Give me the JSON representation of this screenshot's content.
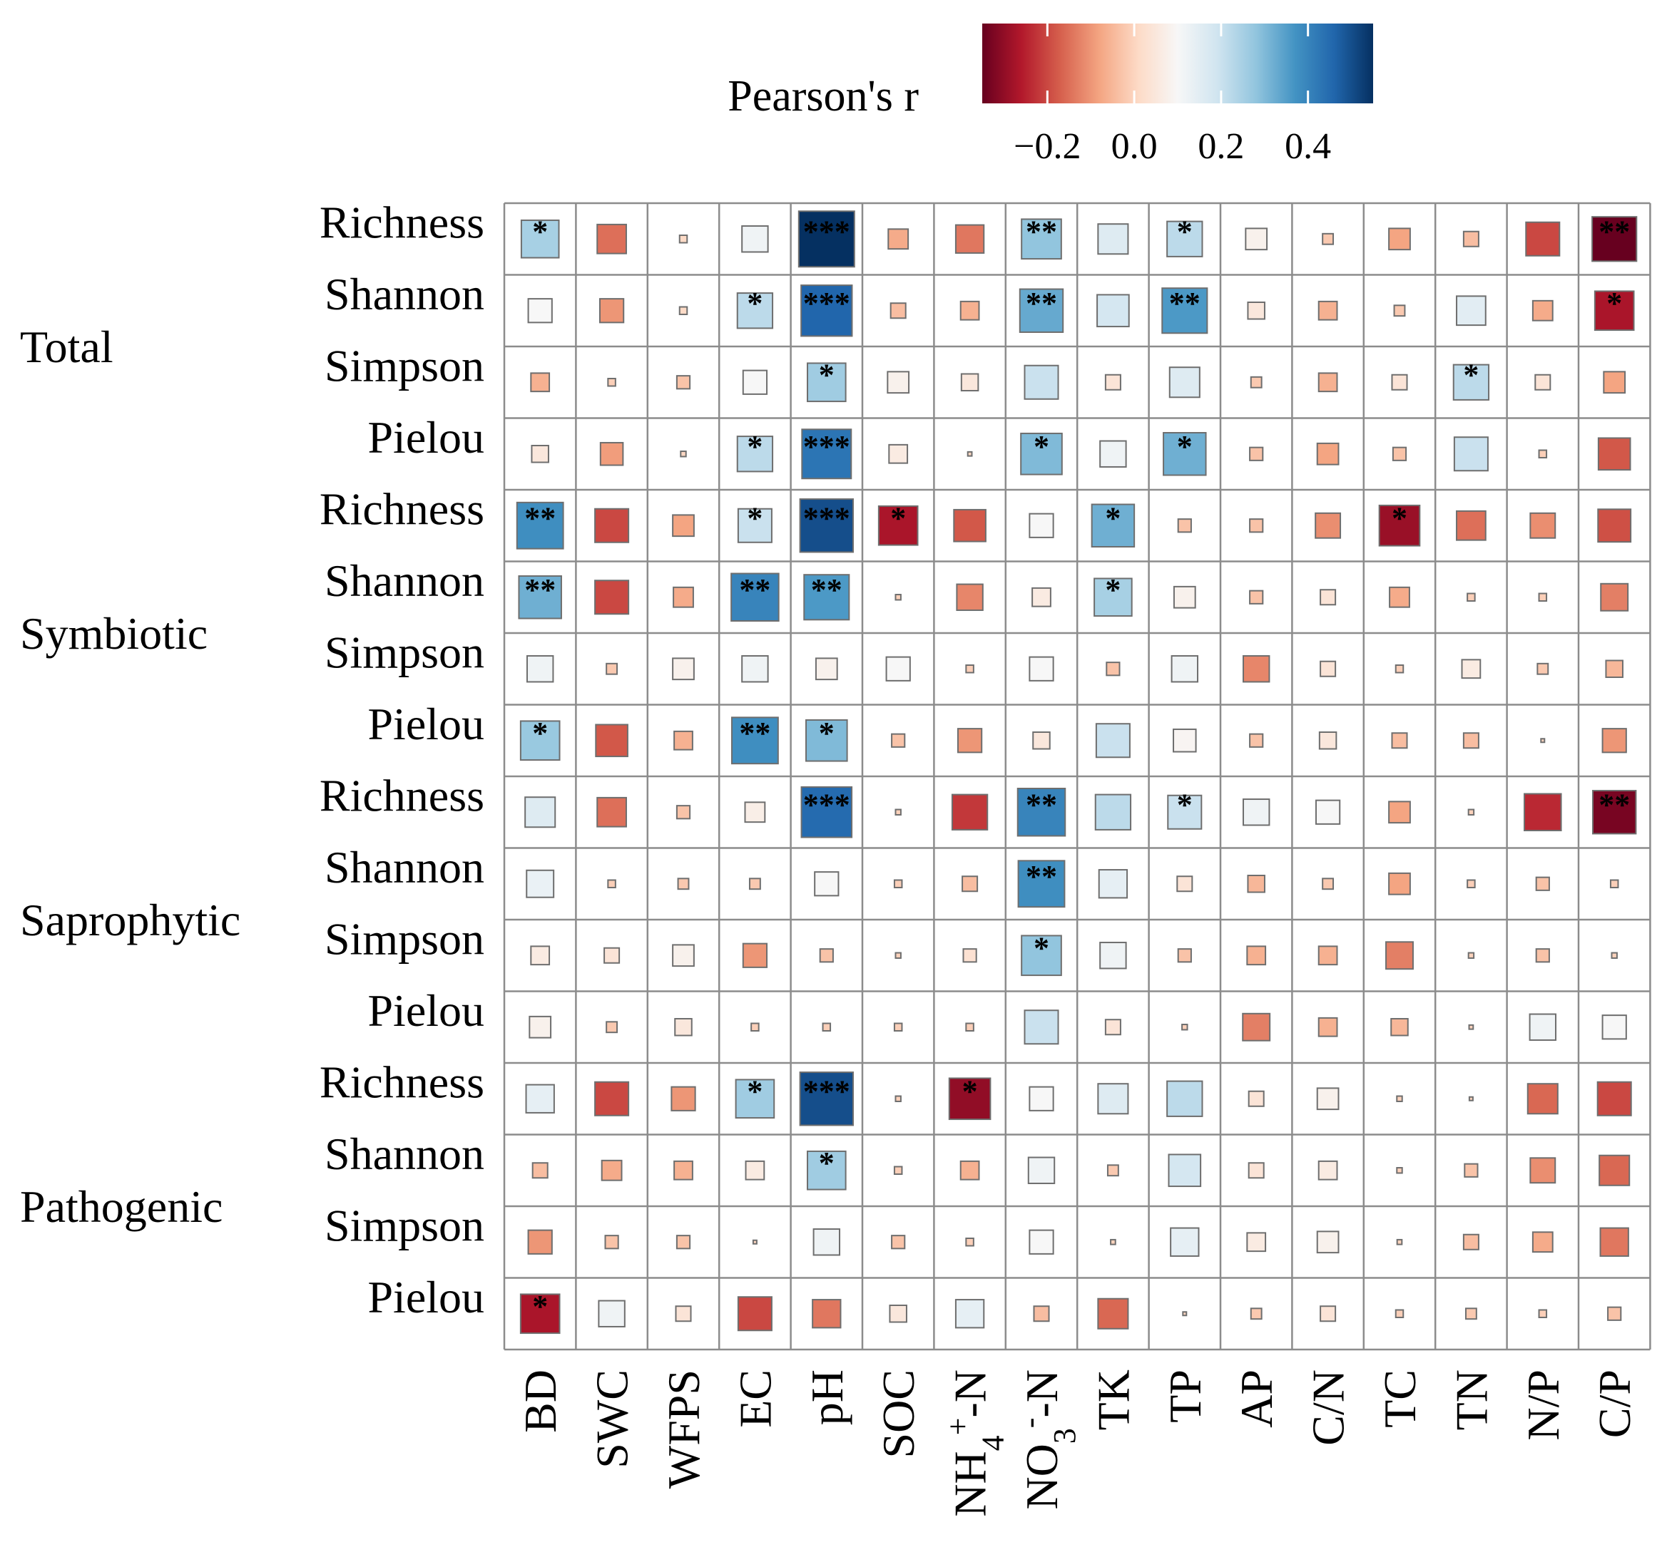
{
  "chart_data": {
    "type": "heatmap",
    "legend": {
      "title": "Pearson's r",
      "ticks": [
        -0.2,
        0.0,
        0.2,
        0.4
      ],
      "tick_labels": [
        "−0.2",
        "0.0",
        "0.2",
        "0.4"
      ],
      "range": [
        -0.35,
        0.55
      ],
      "colors": [
        "#67001f",
        "#b2182b",
        "#d6604d",
        "#f4a582",
        "#fddbc7",
        "#f7f7f7",
        "#d1e5f0",
        "#92c5de",
        "#4393c3",
        "#2166ac",
        "#053061"
      ]
    },
    "groups": [
      "Total",
      "Symbiotic",
      "Saprophytic",
      "Pathogenic"
    ],
    "rows": [
      {
        "group": "Total",
        "label": "Richness",
        "r": [
          0.25,
          -0.15,
          0.01,
          0.12,
          0.55,
          -0.07,
          -0.14,
          0.28,
          0.16,
          0.22,
          0.08,
          -0.02,
          -0.08,
          -0.04,
          -0.2,
          -0.35
        ],
        "sig": [
          "*",
          "",
          "",
          "",
          "***",
          "",
          "",
          "**",
          "",
          "*",
          "",
          "",
          "",
          "",
          "",
          "**"
        ]
      },
      {
        "group": "Total",
        "label": "Shannon",
        "r": [
          0.1,
          -0.1,
          0.01,
          0.22,
          0.46,
          -0.04,
          -0.06,
          0.33,
          0.18,
          0.36,
          0.05,
          -0.06,
          -0.02,
          0.15,
          -0.07,
          -0.27
        ],
        "sig": [
          "",
          "",
          "",
          "*",
          "***",
          "",
          "",
          "**",
          "",
          "**",
          "",
          "",
          "",
          "",
          "",
          "*"
        ]
      },
      {
        "group": "Total",
        "label": "Simpson",
        "r": [
          -0.06,
          -0.01,
          -0.03,
          0.1,
          0.26,
          0.08,
          0.05,
          0.2,
          0.04,
          0.16,
          -0.02,
          -0.06,
          0.04,
          0.22,
          0.04,
          -0.08
        ],
        "sig": [
          "",
          "",
          "",
          "",
          "*",
          "",
          "",
          "",
          "",
          "",
          "",
          "",
          "",
          "*",
          "",
          ""
        ]
      },
      {
        "group": "Total",
        "label": "Pielou",
        "r": [
          0.05,
          -0.09,
          0.005,
          0.22,
          0.43,
          0.06,
          0.003,
          0.3,
          0.12,
          0.32,
          -0.03,
          -0.08,
          -0.03,
          0.2,
          -0.01,
          -0.18
        ],
        "sig": [
          "",
          "",
          "",
          "*",
          "***",
          "",
          "",
          "*",
          "",
          "*",
          "",
          "",
          "",
          "",
          "",
          ""
        ]
      },
      {
        "group": "Symbiotic",
        "label": "Richness",
        "r": [
          0.38,
          -0.2,
          -0.08,
          0.2,
          0.5,
          -0.27,
          -0.18,
          0.1,
          0.32,
          -0.03,
          -0.03,
          -0.11,
          -0.29,
          -0.15,
          -0.11,
          -0.19
        ],
        "sig": [
          "**",
          "",
          "",
          "*",
          "***",
          "*",
          "",
          "",
          "*",
          "",
          "",
          "",
          "*",
          "",
          "",
          ""
        ]
      },
      {
        "group": "Symbiotic",
        "label": "Shannon",
        "r": [
          0.32,
          -0.2,
          -0.07,
          0.4,
          0.36,
          -0.005,
          -0.12,
          0.06,
          0.25,
          0.08,
          -0.03,
          0.04,
          -0.07,
          -0.01,
          -0.01,
          -0.13
        ],
        "sig": [
          "**",
          "",
          "",
          "**",
          "**",
          "",
          "",
          "",
          "*",
          "",
          "",
          "",
          "",
          "",
          "",
          ""
        ]
      },
      {
        "group": "Symbiotic",
        "label": "Simpson",
        "r": [
          0.12,
          -0.02,
          0.08,
          0.12,
          0.08,
          0.1,
          -0.01,
          0.1,
          -0.03,
          0.12,
          -0.12,
          0.04,
          -0.01,
          0.06,
          -0.02,
          -0.05
        ],
        "sig": [
          "",
          "",
          "",
          "",
          "",
          "",
          "",
          "",
          "",
          "",
          "",
          "",
          "",
          "",
          "",
          ""
        ]
      },
      {
        "group": "Symbiotic",
        "label": "Pielou",
        "r": [
          0.27,
          -0.18,
          -0.06,
          0.38,
          0.3,
          -0.03,
          -0.1,
          0.05,
          0.2,
          0.09,
          -0.03,
          0.05,
          -0.04,
          -0.04,
          -0.002,
          -0.1
        ],
        "sig": [
          "*",
          "",
          "",
          "**",
          "*",
          "",
          "",
          "",
          "",
          "",
          "",
          "",
          "",
          "",
          "",
          ""
        ]
      },
      {
        "group": "Saprophytic",
        "label": "Richness",
        "r": [
          0.16,
          -0.15,
          -0.03,
          0.07,
          0.45,
          -0.005,
          -0.22,
          0.4,
          0.22,
          0.2,
          0.12,
          0.1,
          -0.08,
          -0.005,
          -0.24,
          -0.33
        ],
        "sig": [
          "",
          "",
          "",
          "",
          "***",
          "",
          "",
          "**",
          "",
          "*",
          "",
          "",
          "",
          "",
          "",
          "**"
        ]
      },
      {
        "group": "Saprophytic",
        "label": "Shannon",
        "r": [
          0.13,
          -0.01,
          -0.02,
          -0.02,
          0.1,
          -0.01,
          -0.04,
          0.38,
          0.14,
          0.04,
          -0.05,
          -0.02,
          -0.08,
          -0.01,
          -0.03,
          -0.01
        ],
        "sig": [
          "",
          "",
          "",
          "",
          "",
          "",
          "",
          "**",
          "",
          "",
          "",
          "",
          "",
          "",
          "",
          ""
        ]
      },
      {
        "group": "Saprophytic",
        "label": "Simpson",
        "r": [
          0.06,
          0.04,
          0.08,
          -0.1,
          -0.03,
          -0.005,
          0.03,
          0.28,
          0.12,
          -0.03,
          -0.06,
          -0.06,
          -0.13,
          -0.005,
          -0.03,
          -0.005
        ],
        "sig": [
          "",
          "",
          "",
          "",
          "",
          "",
          "",
          "*",
          "",
          "",
          "",
          "",
          "",
          "",
          "",
          ""
        ]
      },
      {
        "group": "Saprophytic",
        "label": "Pielou",
        "r": [
          0.08,
          -0.02,
          0.05,
          -0.01,
          -0.01,
          -0.01,
          -0.01,
          0.2,
          0.04,
          -0.005,
          -0.13,
          -0.06,
          -0.05,
          -0.003,
          0.12,
          0.1
        ],
        "sig": [
          "",
          "",
          "",
          "",
          "",
          "",
          "",
          "",
          "",
          "",
          "",
          "",
          "",
          "",
          "",
          ""
        ]
      },
      {
        "group": "Pathogenic",
        "label": "Richness",
        "r": [
          0.14,
          -0.2,
          -0.1,
          0.26,
          0.5,
          -0.005,
          -0.3,
          0.1,
          0.16,
          0.22,
          0.04,
          0.08,
          -0.005,
          -0.002,
          -0.16,
          -0.2
        ],
        "sig": [
          "",
          "",
          "",
          "*",
          "***",
          "",
          "*",
          "",
          "",
          "",
          "",
          "",
          "",
          "",
          "",
          ""
        ]
      },
      {
        "group": "Pathogenic",
        "label": "Shannon",
        "r": [
          -0.04,
          -0.07,
          -0.06,
          0.06,
          0.26,
          -0.01,
          -0.06,
          0.12,
          -0.02,
          0.18,
          0.04,
          0.06,
          -0.005,
          -0.03,
          -0.11,
          -0.16
        ],
        "sig": [
          "",
          "",
          "",
          "",
          "*",
          "",
          "",
          "",
          "",
          "",
          "",
          "",
          "",
          "",
          "",
          ""
        ]
      },
      {
        "group": "Pathogenic",
        "label": "Simpson",
        "r": [
          -0.1,
          -0.03,
          -0.03,
          -0.002,
          0.12,
          -0.03,
          -0.01,
          0.1,
          -0.004,
          0.14,
          0.06,
          0.08,
          -0.004,
          -0.04,
          -0.07,
          -0.14
        ],
        "sig": [
          "",
          "",
          "",
          "",
          "",
          "",
          "",
          "",
          "",
          "",
          "",
          "",
          "",
          "",
          "",
          ""
        ]
      },
      {
        "group": "Pathogenic",
        "label": "Pielou",
        "r": [
          -0.27,
          0.12,
          0.04,
          -0.2,
          -0.14,
          0.05,
          0.14,
          -0.04,
          -0.16,
          -0.001,
          -0.02,
          0.04,
          -0.01,
          -0.02,
          -0.01,
          -0.03
        ],
        "sig": [
          "*",
          "",
          "",
          "",
          "",
          "",
          "",
          "",
          "",
          "",
          "",
          "",
          "",
          "",
          "",
          ""
        ]
      }
    ],
    "columns": [
      {
        "id": "BD",
        "base": "BD",
        "sup": "",
        "sub": "",
        "tail": ""
      },
      {
        "id": "SWC",
        "base": "SWC",
        "sup": "",
        "sub": "",
        "tail": ""
      },
      {
        "id": "WFPS",
        "base": "WFPS",
        "sup": "",
        "sub": "",
        "tail": ""
      },
      {
        "id": "EC",
        "base": "EC",
        "sup": "",
        "sub": "",
        "tail": ""
      },
      {
        "id": "pH",
        "base": "pH",
        "sup": "",
        "sub": "",
        "tail": ""
      },
      {
        "id": "SOC",
        "base": "SOC",
        "sup": "",
        "sub": "",
        "tail": ""
      },
      {
        "id": "NH4+-N",
        "base": "NH",
        "sub": "4",
        "sup": "+",
        "tail": "-N"
      },
      {
        "id": "NO3--N",
        "base": "NO",
        "sub": "3",
        "sup": "-",
        "tail": "-N"
      },
      {
        "id": "TK",
        "base": "TK",
        "sup": "",
        "sub": "",
        "tail": ""
      },
      {
        "id": "TP",
        "base": "TP",
        "sup": "",
        "sub": "",
        "tail": ""
      },
      {
        "id": "AP",
        "base": "AP",
        "sup": "",
        "sub": "",
        "tail": ""
      },
      {
        "id": "C/N",
        "base": "C/N",
        "sup": "",
        "sub": "",
        "tail": ""
      },
      {
        "id": "TC",
        "base": "TC",
        "sup": "",
        "sub": "",
        "tail": ""
      },
      {
        "id": "TN",
        "base": "TN",
        "sup": "",
        "sub": "",
        "tail": ""
      },
      {
        "id": "N/P",
        "base": "N/P",
        "sup": "",
        "sub": "",
        "tail": ""
      },
      {
        "id": "C/P",
        "base": "C/P",
        "sup": "",
        "sub": "",
        "tail": ""
      }
    ]
  }
}
